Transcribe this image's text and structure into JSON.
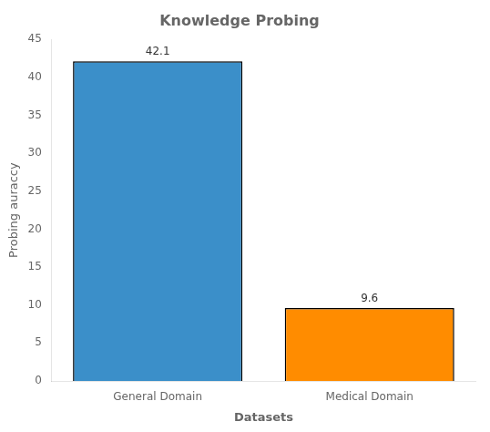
{
  "chart_data": {
    "type": "bar",
    "title": "Knowledge Probing",
    "xlabel": "Datasets",
    "ylabel": "Probing auraccy",
    "categories": [
      "General Domain",
      "Medical Domain"
    ],
    "values": [
      42.1,
      9.6
    ],
    "colors": [
      "#3b8fc9",
      "#ff8c00"
    ],
    "ylim": [
      0,
      45
    ],
    "yticks": [
      0,
      5,
      10,
      15,
      20,
      25,
      30,
      35,
      40,
      45
    ],
    "grid": false,
    "data_labels": true
  }
}
